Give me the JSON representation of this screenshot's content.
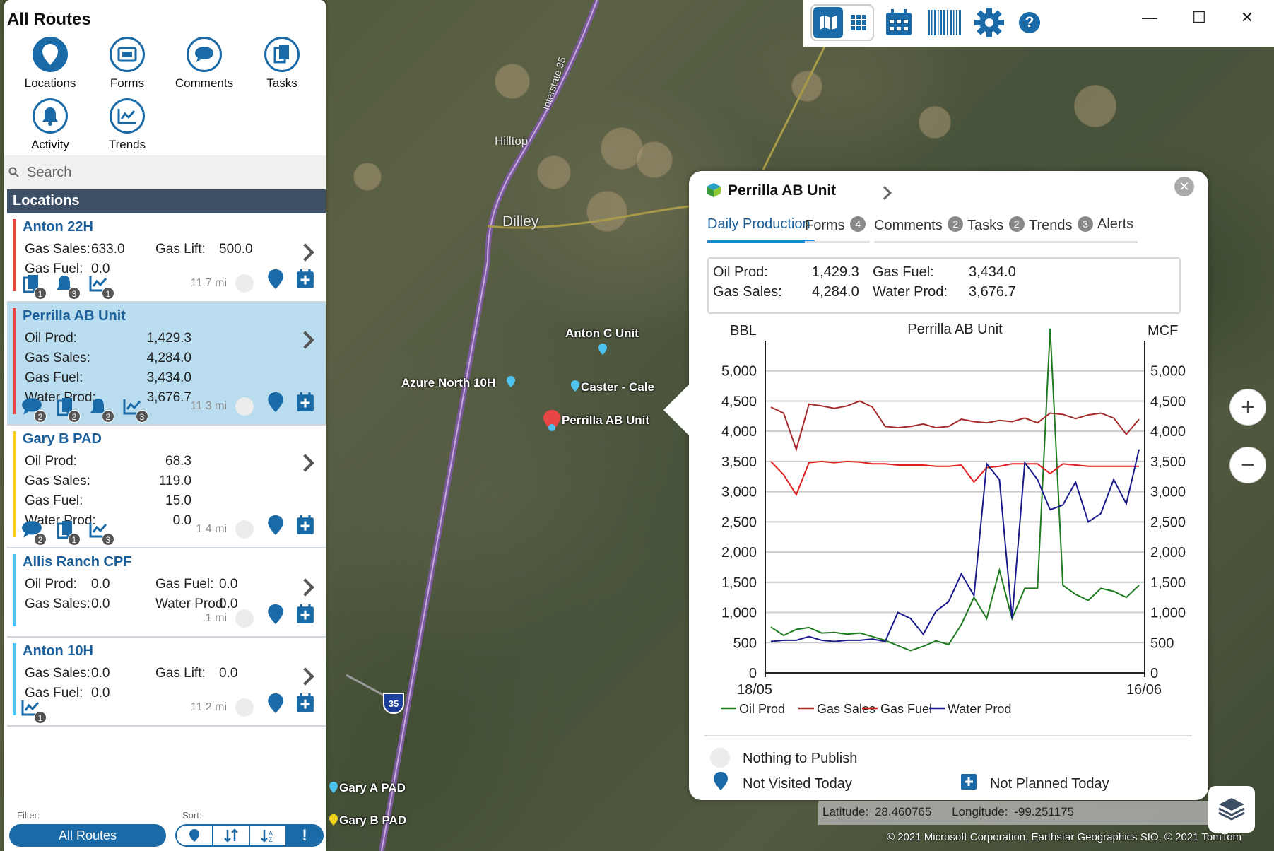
{
  "app": {
    "title": "All Routes"
  },
  "nav": {
    "locations": "Locations",
    "forms": "Forms",
    "comments": "Comments",
    "tasks": "Tasks",
    "activity": "Activity",
    "trends": "Trends"
  },
  "search": {
    "placeholder": "Search"
  },
  "list": {
    "header": "Locations",
    "cards": [
      {
        "name": "Anton 22H",
        "color": "#e84545",
        "rows": [
          [
            "Gas Sales:",
            "633.0",
            "Gas Lift:",
            "500.0"
          ],
          [
            "Gas Fuel:",
            "0.0",
            "",
            ""
          ]
        ],
        "icons": [
          {
            "type": "tasks",
            "badge": "1"
          },
          {
            "type": "activity",
            "badge": "3"
          },
          {
            "type": "trends",
            "badge": "1"
          }
        ],
        "distance": "11.7 mi"
      },
      {
        "name": "Perrilla AB Unit",
        "color": "#e84545",
        "selected": true,
        "rows": [
          [
            "Oil Prod:",
            "1,429.3"
          ],
          [
            "Gas Sales:",
            "4,284.0"
          ],
          [
            "Gas Fuel:",
            "3,434.0"
          ],
          [
            "Water Prod:",
            "3,676.7"
          ]
        ],
        "icons": [
          {
            "type": "comments",
            "badge": "2"
          },
          {
            "type": "tasks",
            "badge": "2"
          },
          {
            "type": "activity",
            "badge": "2"
          },
          {
            "type": "trends",
            "badge": "3"
          }
        ],
        "distance": "11.3 mi"
      },
      {
        "name": "Gary B PAD",
        "color": "#f2d21a",
        "rows": [
          [
            "Oil Prod:",
            "68.3"
          ],
          [
            "Gas Sales:",
            "119.0"
          ],
          [
            "Gas Fuel:",
            "15.0"
          ],
          [
            "Water Prod:",
            "0.0"
          ]
        ],
        "icons": [
          {
            "type": "comments",
            "badge": "2"
          },
          {
            "type": "tasks",
            "badge": "1"
          },
          {
            "type": "trends",
            "badge": "3"
          }
        ],
        "distance": "1.4 mi"
      },
      {
        "name": "Allis Ranch CPF",
        "color": "#4ec3ef",
        "rows": [
          [
            "Oil Prod:",
            "0.0",
            "Gas Fuel:",
            "0.0"
          ],
          [
            "Gas Sales:",
            "0.0",
            "Water Prod:",
            "0.0"
          ]
        ],
        "icons": [],
        "distance": ".1 mi"
      },
      {
        "name": "Anton 10H",
        "color": "#4ec3ef",
        "rows": [
          [
            "Gas Sales:",
            "0.0",
            "Gas Lift:",
            "0.0"
          ],
          [
            "Gas Fuel:",
            "0.0",
            "",
            ""
          ]
        ],
        "icons": [
          {
            "type": "trends",
            "badge": "1"
          }
        ],
        "distance": "11.2 mi"
      }
    ]
  },
  "filter": {
    "label": "Filter:",
    "value": "All Routes",
    "sort_label": "Sort:"
  },
  "map": {
    "towns": [
      "Hilltop",
      "Dilley"
    ],
    "highway": "Interstate 35",
    "shield": "35",
    "labels": [
      "Anton C Unit",
      "Azure North 10H",
      "Caster - Cale",
      "Perrilla AB Unit",
      "Gary A PAD",
      "Gary B PAD"
    ],
    "latitude_label": "Latitude:",
    "latitude": "28.460765",
    "longitude_label": "Longitude:",
    "longitude": "-99.251175",
    "copyright": "© 2021 Microsoft Corporation, Earthstar Geographics  SIO, © 2021 TomTom"
  },
  "popup": {
    "title": "Perrilla AB Unit",
    "tabs": [
      {
        "label": "Daily Production",
        "badge": ""
      },
      {
        "label": "Forms",
        "badge": "4"
      },
      {
        "label": "Comments",
        "badge": "2"
      },
      {
        "label": "Tasks",
        "badge": "2"
      },
      {
        "label": "Trends",
        "badge": "3"
      },
      {
        "label": "Alerts",
        "badge": ""
      }
    ],
    "summary": [
      [
        "Oil Prod:",
        "1,429.3",
        "Gas Fuel:",
        "3,434.0"
      ],
      [
        "Gas Sales:",
        "4,284.0",
        "Water Prod:",
        "3,676.7"
      ]
    ],
    "legend_status": {
      "nothing": "Nothing to Publish",
      "not_visited": "Not Visited Today",
      "not_planned": "Not Planned Today"
    }
  },
  "chart_data": {
    "type": "line",
    "title": "Perrilla AB Unit",
    "ylabel": "BBL",
    "y2label": "MCF",
    "ylim": [
      0,
      5500
    ],
    "yticks": [
      "0",
      "500",
      "1,000",
      "1,500",
      "2,000",
      "2,500",
      "3,000",
      "3,500",
      "4,000",
      "4,500",
      "5,000"
    ],
    "x_start_label": "18/05",
    "x_end_label": "16/06",
    "grid": true,
    "legend": "bottom",
    "series": [
      {
        "name": "Oil Prod",
        "color": "#1e7a1e",
        "values": [
          760,
          620,
          720,
          750,
          660,
          670,
          640,
          660,
          600,
          540,
          450,
          370,
          440,
          530,
          470,
          800,
          1250,
          900,
          1700,
          900,
          1400,
          1400,
          5700,
          1450,
          1300,
          1200,
          1400,
          1350,
          1250,
          1450
        ]
      },
      {
        "name": "Gas Sales",
        "color": "#a52a2a",
        "values": [
          4400,
          4300,
          3700,
          4450,
          4420,
          4380,
          4420,
          4500,
          4400,
          4080,
          4060,
          4080,
          4120,
          4060,
          4080,
          4200,
          4160,
          4140,
          4180,
          4160,
          4220,
          4140,
          4300,
          4280,
          4210,
          4270,
          4300,
          4220,
          3950,
          4200
        ]
      },
      {
        "name": "Gas Fuel",
        "color": "#e02020",
        "values": [
          3500,
          3280,
          2950,
          3480,
          3500,
          3480,
          3500,
          3490,
          3460,
          3460,
          3440,
          3440,
          3440,
          3420,
          3420,
          3440,
          3160,
          3400,
          3420,
          3460,
          3460,
          3460,
          3300,
          3460,
          3440,
          3420,
          3420,
          3420,
          3420,
          3420
        ]
      },
      {
        "name": "Water Prod",
        "color": "#1a1a8c",
        "values": [
          520,
          540,
          540,
          600,
          540,
          520,
          540,
          540,
          560,
          520,
          1000,
          900,
          640,
          1020,
          1180,
          1640,
          1280,
          3460,
          3200,
          900,
          3480,
          3200,
          2700,
          2780,
          3160,
          2500,
          2640,
          3200,
          2800,
          3700
        ]
      }
    ]
  }
}
